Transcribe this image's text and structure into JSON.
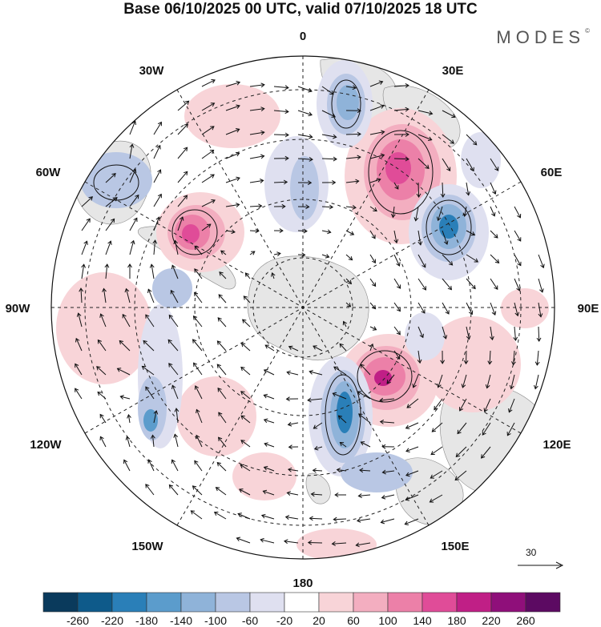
{
  "title": "Base 06/10/2025 00 UTC, valid 07/10/2025 18 UTC",
  "brand": "MODES",
  "brand_mark": "©",
  "longitude_labels": {
    "top": "0",
    "ne": "30E",
    "ene": "60E",
    "e": "90E",
    "ese": "120E",
    "se": "150E",
    "bottom": "180",
    "sw": "150W",
    "wsw": "120W",
    "w": "90W",
    "wnw": "60W",
    "nw": "30W"
  },
  "vector_reference": "30",
  "colorbar": {
    "labels": [
      "-260",
      "-220",
      "-180",
      "-140",
      "-100",
      "-60",
      "-20",
      "20",
      "60",
      "100",
      "140",
      "180",
      "220",
      "260"
    ],
    "colors": [
      "#0a3a5c",
      "#0e5a8a",
      "#2a7fb8",
      "#5b9ccc",
      "#8fb3d9",
      "#b9c7e4",
      "#dfe0f0",
      "#ffffff",
      "#f8d4d8",
      "#f3aec0",
      "#ec80a8",
      "#e04c98",
      "#c01f86",
      "#8f0f7a",
      "#5c0a62"
    ]
  },
  "colors": {
    "land": "#e6e6e6",
    "positive_light": "#f8d4d8",
    "positive_mid": "#f3aec0",
    "positive_strong": "#e04c98",
    "negative_light": "#dfe0f0",
    "negative_mid": "#8fb3d9",
    "negative_strong": "#2a7fb8"
  }
}
